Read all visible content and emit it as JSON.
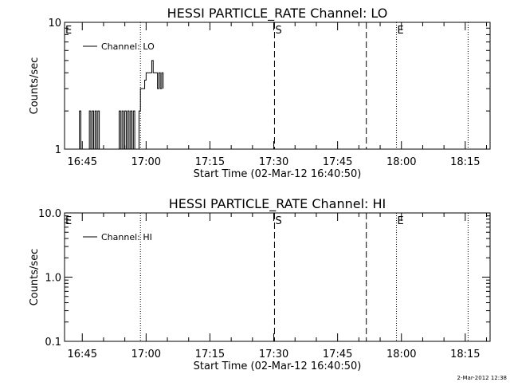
{
  "footer": {
    "timestamp": "2-Mar-2012 12:38"
  },
  "chart_data": [
    {
      "type": "line",
      "title": "HESSI PARTICLE_RATE Channel: LO",
      "xlabel": "Start Time (02-Mar-12 16:40:50)",
      "ylabel": "Counts/sec",
      "yscale": "log",
      "ylim": [
        1,
        10
      ],
      "xlim": [
        "16:40:50",
        "18:20:50"
      ],
      "xticks": [
        "16:45",
        "17:00",
        "17:15",
        "17:30",
        "17:45",
        "18:00",
        "18:15"
      ],
      "yticks": [
        "1",
        "10"
      ],
      "legend": {
        "label": "Channel: LO",
        "position": "top-left"
      },
      "markers": [
        {
          "time": "16:40:50",
          "label": "E",
          "style": "dotted"
        },
        {
          "time": "16:58:40",
          "label": "",
          "style": "dotted"
        },
        {
          "time": "17:30:10",
          "label": "S",
          "style": "dashed"
        },
        {
          "time": "17:51:45",
          "label": "",
          "style": "dashed"
        },
        {
          "time": "17:58:50",
          "label": "E",
          "style": "dotted"
        },
        {
          "time": "18:15:40",
          "label": "",
          "style": "dotted"
        }
      ],
      "series": [
        {
          "name": "Channel: LO",
          "points": [
            [
              "16:44:00",
              1
            ],
            [
              "16:44:20",
              2
            ],
            [
              "16:44:40",
              1
            ],
            [
              "16:45:00",
              1
            ],
            [
              "16:46:20",
              1
            ],
            [
              "16:46:40",
              2
            ],
            [
              "16:47:00",
              1
            ],
            [
              "16:47:20",
              2
            ],
            [
              "16:47:40",
              1
            ],
            [
              "16:48:00",
              2
            ],
            [
              "16:48:20",
              1
            ],
            [
              "16:48:40",
              2
            ],
            [
              "16:49:00",
              1
            ],
            [
              "16:49:20",
              1
            ],
            [
              "16:53:20",
              1
            ],
            [
              "16:53:40",
              2
            ],
            [
              "16:54:00",
              1
            ],
            [
              "16:54:20",
              2
            ],
            [
              "16:54:40",
              1
            ],
            [
              "16:55:00",
              2
            ],
            [
              "16:55:20",
              1
            ],
            [
              "16:55:40",
              2
            ],
            [
              "16:56:00",
              1
            ],
            [
              "16:56:20",
              2
            ],
            [
              "16:56:40",
              1
            ],
            [
              "16:57:00",
              2
            ],
            [
              "16:57:20",
              1
            ],
            [
              "16:58:00",
              1
            ],
            [
              "16:58:20",
              2
            ],
            [
              "16:58:40",
              3
            ],
            [
              "16:59:00",
              3
            ],
            [
              "16:59:20",
              3
            ],
            [
              "16:59:40",
              3.5
            ],
            [
              "17:00:00",
              4
            ],
            [
              "17:00:20",
              4
            ],
            [
              "17:00:40",
              4
            ],
            [
              "17:01:00",
              4
            ],
            [
              "17:01:20",
              5
            ],
            [
              "17:01:40",
              4
            ],
            [
              "17:02:00",
              4
            ],
            [
              "17:02:20",
              4
            ],
            [
              "17:02:40",
              3
            ],
            [
              "17:03:00",
              4
            ],
            [
              "17:03:20",
              3
            ],
            [
              "17:03:40",
              4
            ],
            [
              "17:04:00",
              3
            ]
          ]
        }
      ]
    },
    {
      "type": "line",
      "title": "HESSI PARTICLE_RATE Channel: HI",
      "xlabel": "Start Time (02-Mar-12 16:40:50)",
      "ylabel": "Counts/sec",
      "yscale": "log",
      "ylim": [
        0.1,
        10
      ],
      "xlim": [
        "16:40:50",
        "18:20:50"
      ],
      "xticks": [
        "16:45",
        "17:00",
        "17:15",
        "17:30",
        "17:45",
        "18:00",
        "18:15"
      ],
      "yticks": [
        "0.1",
        "1.0",
        "10.0"
      ],
      "legend": {
        "label": "Channel: HI",
        "position": "top-left"
      },
      "markers": [
        {
          "time": "16:40:50",
          "label": "E",
          "style": "dotted"
        },
        {
          "time": "16:58:40",
          "label": "",
          "style": "dotted"
        },
        {
          "time": "17:30:10",
          "label": "S",
          "style": "dashed"
        },
        {
          "time": "17:51:45",
          "label": "",
          "style": "dashed"
        },
        {
          "time": "17:58:50",
          "label": "E",
          "style": "dotted"
        },
        {
          "time": "18:15:40",
          "label": "",
          "style": "dotted"
        }
      ],
      "series": [
        {
          "name": "Channel: HI",
          "points": []
        }
      ]
    }
  ]
}
